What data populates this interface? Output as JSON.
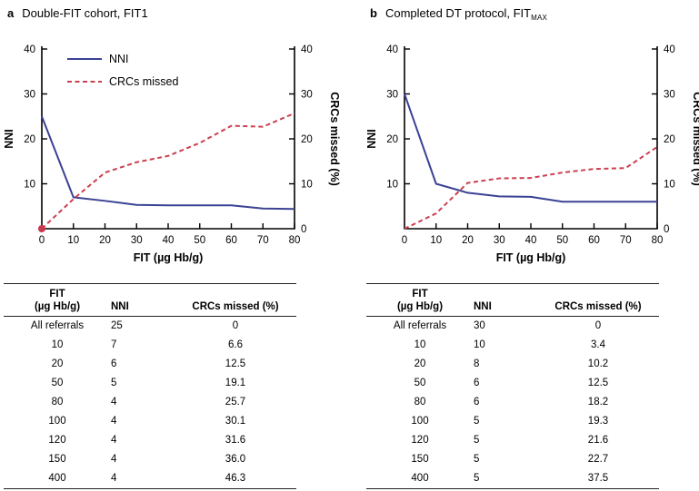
{
  "figure": {
    "panels": [
      {
        "letter": "a",
        "title": "Double-FIT cohort, FIT1",
        "title_subscript": ""
      },
      {
        "letter": "b",
        "title": "Completed DT protocol, FIT",
        "title_subscript": "MAX"
      }
    ]
  },
  "colors": {
    "nni_line": "#3b4294",
    "crc_line": "#cc3f50",
    "origin_dot": "#c8374b",
    "axis": "#000000",
    "rule": "#222222"
  },
  "chart_data": [
    {
      "type": "line",
      "title": "Double-FIT cohort, FIT1",
      "xlabel": "FIT (µg Hb/g)",
      "ylabel_left": "NNI",
      "ylabel_right": "CRCs missed (%)",
      "xlim": [
        0,
        80
      ],
      "ylim": [
        0,
        40
      ],
      "xticks": [
        0,
        10,
        20,
        30,
        40,
        50,
        60,
        70,
        80
      ],
      "yticks": [
        0,
        10,
        20,
        30,
        40
      ],
      "grid": false,
      "legend": true,
      "legend_position": "top-left-inside",
      "origin_marker": true,
      "x": [
        0,
        10,
        20,
        30,
        40,
        50,
        60,
        70,
        80
      ],
      "series": [
        {
          "name": "NNI",
          "axis": "left",
          "style": "solid",
          "color": "#3b4294",
          "values": [
            25,
            7,
            6.2,
            5.3,
            5.2,
            5.2,
            5.2,
            4.5,
            4.4
          ]
        },
        {
          "name": "CRCs missed",
          "axis": "right",
          "style": "dashed",
          "color": "#cc3f50",
          "values": [
            0,
            6.6,
            12.5,
            14.8,
            16.2,
            19.1,
            22.9,
            22.7,
            25.7
          ]
        }
      ]
    },
    {
      "type": "line",
      "title": "Completed DT protocol, FITMAX",
      "xlabel": "FIT (µg Hb/g)",
      "ylabel_left": "NNI",
      "ylabel_right": "CRCs missed (%)",
      "xlim": [
        0,
        80
      ],
      "ylim": [
        0,
        40
      ],
      "xticks": [
        0,
        10,
        20,
        30,
        40,
        50,
        60,
        70,
        80
      ],
      "yticks": [
        0,
        10,
        20,
        30,
        40
      ],
      "grid": false,
      "legend": false,
      "legend_position": "none",
      "origin_marker": false,
      "x": [
        0,
        10,
        20,
        30,
        40,
        50,
        60,
        70,
        80
      ],
      "series": [
        {
          "name": "NNI",
          "axis": "left",
          "style": "solid",
          "color": "#3b4294",
          "values": [
            30,
            10,
            8,
            7.2,
            7.1,
            6,
            6,
            6,
            6
          ]
        },
        {
          "name": "CRCs missed",
          "axis": "right",
          "style": "dashed",
          "color": "#cc3f50",
          "values": [
            0,
            3.4,
            10.2,
            11.2,
            11.3,
            12.5,
            13.3,
            13.5,
            18.2
          ]
        }
      ]
    }
  ],
  "tables": [
    {
      "headers": {
        "col1_line1": "FIT",
        "col1_line2": "(µg Hb/g)",
        "col2": "NNI",
        "col3": "CRCs missed (%)"
      },
      "rows": [
        [
          "All referrals",
          "25",
          "0"
        ],
        [
          "10",
          "7",
          "6.6"
        ],
        [
          "20",
          "6",
          "12.5"
        ],
        [
          "50",
          "5",
          "19.1"
        ],
        [
          "80",
          "4",
          "25.7"
        ],
        [
          "100",
          "4",
          "30.1"
        ],
        [
          "120",
          "4",
          "31.6"
        ],
        [
          "150",
          "4",
          "36.0"
        ],
        [
          "400",
          "4",
          "46.3"
        ]
      ]
    },
    {
      "headers": {
        "col1_line1": "FIT",
        "col1_line2": "(µg Hb/g)",
        "col2": "NNI",
        "col3": "CRCs missed (%)"
      },
      "rows": [
        [
          "All referrals",
          "30",
          "0"
        ],
        [
          "10",
          "10",
          "3.4"
        ],
        [
          "20",
          "8",
          "10.2"
        ],
        [
          "50",
          "6",
          "12.5"
        ],
        [
          "80",
          "6",
          "18.2"
        ],
        [
          "100",
          "5",
          "19.3"
        ],
        [
          "120",
          "5",
          "21.6"
        ],
        [
          "150",
          "5",
          "22.7"
        ],
        [
          "400",
          "5",
          "37.5"
        ]
      ]
    }
  ]
}
